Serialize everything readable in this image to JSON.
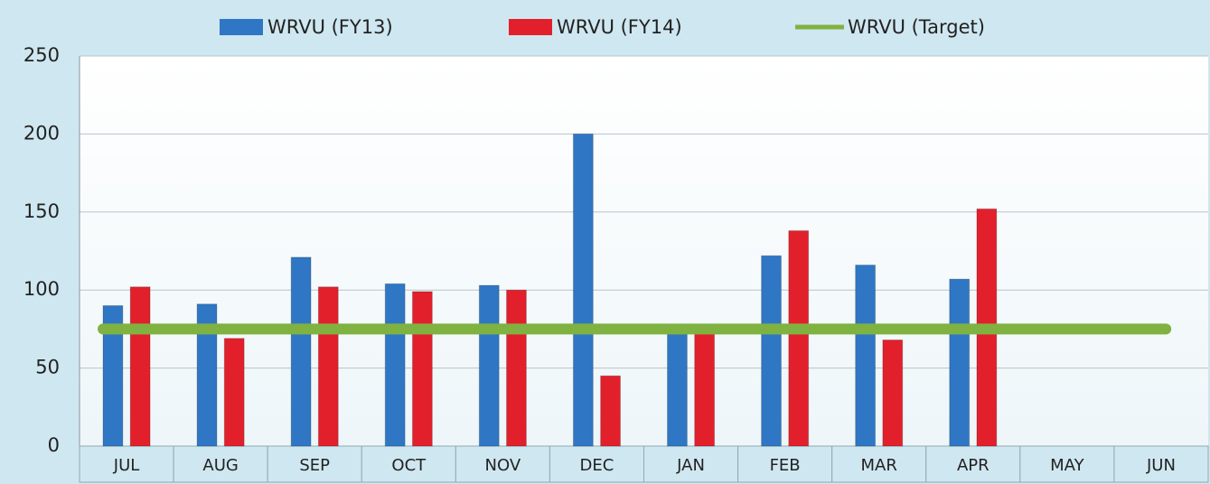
{
  "chart_data": {
    "type": "bar",
    "categories": [
      "JUL",
      "AUG",
      "SEP",
      "OCT",
      "NOV",
      "DEC",
      "JAN",
      "FEB",
      "MAR",
      "APR",
      "MAY",
      "JUN"
    ],
    "series": [
      {
        "name": "WRVU (FY13)",
        "color": "#2f77c4",
        "values": [
          90,
          91,
          121,
          104,
          103,
          200,
          73,
          122,
          116,
          107,
          null,
          null
        ]
      },
      {
        "name": "WRVU (FY14)",
        "color": "#e2202c",
        "values": [
          102,
          69,
          102,
          99,
          100,
          45,
          73,
          138,
          68,
          152,
          null,
          null
        ]
      },
      {
        "name": "WRVU (Target)",
        "color": "#7fb241",
        "type": "line",
        "values": [
          75,
          75,
          75,
          75,
          75,
          75,
          75,
          75,
          75,
          75,
          75,
          75
        ]
      }
    ],
    "ylim": [
      0,
      250
    ],
    "yticks": [
      0,
      50,
      100,
      150,
      200,
      250
    ],
    "grid": true,
    "legend": "top"
  }
}
